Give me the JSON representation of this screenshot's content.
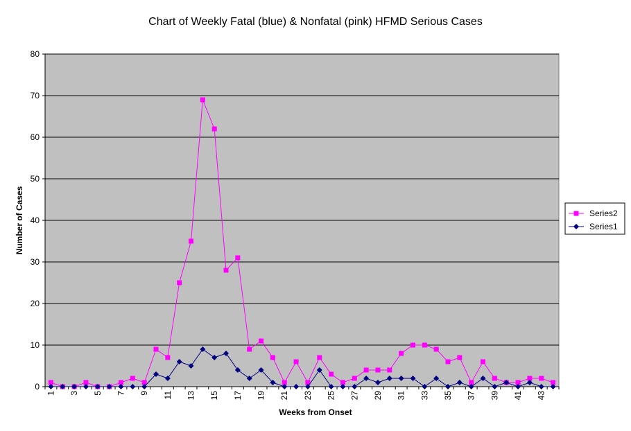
{
  "chart_data": {
    "type": "line",
    "title": "Chart of Weekly Fatal (blue) & Nonfatal (pink) HFMD Serious Cases",
    "xlabel": "Weeks   from   Onset",
    "ylabel": "Number   of   Cases",
    "ylim": [
      0,
      80
    ],
    "y_ticks": [
      "0",
      "10",
      "20",
      "30",
      "40",
      "50",
      "60",
      "70",
      "80"
    ],
    "x": [
      1,
      2,
      3,
      4,
      5,
      6,
      7,
      8,
      9,
      10,
      11,
      12,
      13,
      14,
      15,
      16,
      17,
      18,
      19,
      20,
      21,
      22,
      23,
      24,
      25,
      26,
      27,
      28,
      29,
      30,
      31,
      32,
      33,
      34,
      35,
      36,
      37,
      38,
      39,
      40,
      41,
      42,
      43,
      44
    ],
    "x_tick_labels": [
      "1",
      "3",
      "5",
      "7",
      "9",
      "11",
      "13",
      "15",
      "17",
      "19",
      "21",
      "23",
      "25",
      "27",
      "29",
      "31",
      "33",
      "35",
      "37",
      "39",
      "41",
      "43"
    ],
    "grid": "horizontal",
    "legend_position": "right",
    "background_color": "#c0c0c0",
    "series": [
      {
        "name": "Series2",
        "color": "#ff00ff",
        "marker": "square",
        "values": [
          1,
          0,
          0,
          1,
          0,
          0,
          1,
          2,
          1,
          9,
          7,
          25,
          35,
          69,
          62,
          28,
          31,
          9,
          11,
          7,
          1,
          6,
          1,
          7,
          3,
          1,
          2,
          4,
          4,
          4,
          8,
          10,
          10,
          9,
          6,
          7,
          1,
          6,
          2,
          1,
          1,
          2,
          2,
          1
        ]
      },
      {
        "name": "Series1",
        "color": "#000080",
        "marker": "diamond",
        "values": [
          0,
          0,
          0,
          0,
          0,
          0,
          0,
          0,
          0,
          3,
          2,
          6,
          5,
          9,
          7,
          8,
          4,
          2,
          4,
          1,
          0,
          0,
          0,
          4,
          0,
          0,
          0,
          2,
          1,
          2,
          2,
          2,
          0,
          2,
          0,
          1,
          0,
          2,
          0,
          1,
          0,
          1,
          0,
          0
        ]
      }
    ]
  }
}
